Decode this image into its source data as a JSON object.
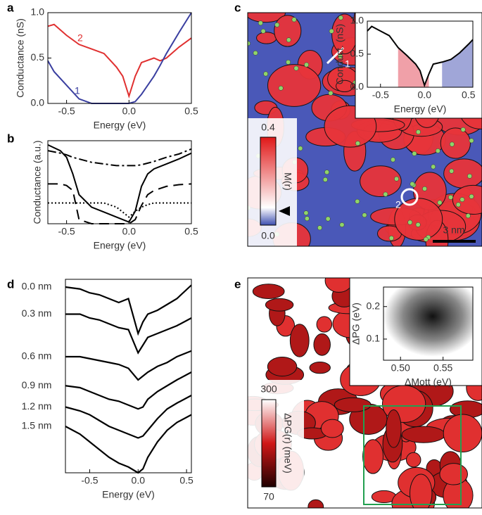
{
  "figure": {
    "panels": [
      "a",
      "b",
      "c",
      "d",
      "e"
    ],
    "c_scale_bar": "3 nm",
    "c_colorbar": {
      "max": "0.4",
      "min": "0.0",
      "label": "M(r)"
    },
    "c_sites": [
      "1",
      "2"
    ],
    "e_colorbar": {
      "max": "300",
      "min": "70",
      "label": "ΔPG(r) (meV)"
    }
  },
  "chart_data": [
    {
      "type": "line",
      "x_label": "Energy (eV)",
      "y_label": "Conductance (nS)",
      "x": [
        -0.65,
        -0.6,
        -0.5,
        -0.4,
        -0.3,
        -0.2,
        -0.1,
        -0.05,
        0,
        0.05,
        0.1,
        0.2,
        0.25,
        0.3,
        0.4,
        0.5
      ],
      "series": [
        {
          "name": "2",
          "color": "#e03030",
          "values": [
            0.85,
            0.87,
            0.75,
            0.65,
            0.6,
            0.55,
            0.4,
            0.3,
            0.08,
            0.3,
            0.45,
            0.5,
            0.47,
            0.5,
            0.62,
            0.72
          ]
        },
        {
          "name": "1",
          "color": "#3a3fa0",
          "values": [
            0.47,
            0.35,
            0.2,
            0.05,
            0.0,
            0.0,
            0.0,
            0.0,
            0.0,
            0.02,
            0.1,
            0.3,
            0.42,
            0.55,
            0.78,
            1.0
          ]
        }
      ],
      "xlim": [
        -0.65,
        0.5
      ],
      "ylim": [
        0,
        1
      ],
      "xticks": [
        -0.5,
        {
          "value": 0,
          "label": "0.0"
        },
        0.5
      ],
      "yticks": [
        {
          "value": 0,
          "label": "0.0"
        },
        0.5,
        {
          "value": 1,
          "label": "1.0"
        }
      ]
    },
    {
      "type": "line",
      "x_label": "Energy (eV)",
      "y_label": "Conductance (a.u.)",
      "x": [
        -0.65,
        -0.55,
        -0.5,
        -0.45,
        -0.4,
        -0.3,
        -0.2,
        -0.1,
        0,
        0.05,
        0.1,
        0.15,
        0.2,
        0.3,
        0.4,
        0.5
      ],
      "series": [
        {
          "color": "#000000",
          "dash": "solid",
          "values": [
            0.95,
            0.88,
            0.8,
            0.6,
            0.35,
            0.2,
            0.14,
            0.08,
            0.02,
            0.15,
            0.45,
            0.6,
            0.66,
            0.72,
            0.78,
            0.85
          ]
        },
        {
          "color": "#000000",
          "dash": "dashdot",
          "values": [
            0.88,
            0.85,
            0.83,
            0.8,
            0.78,
            0.74,
            0.72,
            0.7,
            0.7,
            0.7,
            0.71,
            0.73,
            0.75,
            0.8,
            0.84,
            0.9
          ]
        },
        {
          "color": "#000000",
          "dash": "dashed",
          "values": [
            0.48,
            0.48,
            0.46,
            0.4,
            0.05,
            0.0,
            0.0,
            0.0,
            0.0,
            0.05,
            0.22,
            0.35,
            0.4,
            0.45,
            0.47,
            0.48
          ]
        },
        {
          "color": "#000000",
          "dash": "dotted",
          "values": [
            0.25,
            0.25,
            0.25,
            0.25,
            0.25,
            0.25,
            0.25,
            0.2,
            0.08,
            0.15,
            0.2,
            0.23,
            0.25,
            0.25,
            0.25,
            0.25
          ]
        }
      ],
      "xlim": [
        -0.65,
        0.5
      ],
      "ylim": [
        0,
        1
      ],
      "xticks": [
        -0.5,
        {
          "value": 0,
          "label": "0.0"
        },
        0.5
      ],
      "yticks": []
    },
    {
      "type": "line",
      "x_label": "Energy (eV)",
      "y_label": "Conduct. (nS)",
      "x": [
        -0.65,
        -0.6,
        -0.5,
        -0.4,
        -0.3,
        -0.2,
        -0.1,
        -0.05,
        0,
        0.05,
        0.1,
        0.2,
        0.3,
        0.4,
        0.5,
        0.55
      ],
      "series": [
        {
          "color": "#000000",
          "values": [
            0.85,
            0.92,
            0.85,
            0.78,
            0.6,
            0.48,
            0.35,
            0.25,
            0.03,
            0.2,
            0.35,
            0.38,
            0.42,
            0.52,
            0.65,
            0.72
          ]
        }
      ],
      "shaded_regions": [
        {
          "from": -0.3,
          "to": 0.05,
          "color": "#f0a0a8"
        },
        {
          "from": 0.2,
          "to": 0.55,
          "color": "#a0a6d8"
        }
      ],
      "xlim": [
        -0.65,
        0.55
      ],
      "ylim": [
        0,
        1
      ],
      "xticks": [
        -0.5,
        {
          "value": 0,
          "label": "0.0"
        },
        0.5
      ],
      "yticks": [
        {
          "value": 0,
          "label": "0.0"
        },
        0.5,
        {
          "value": 1,
          "label": "1.0"
        }
      ]
    },
    {
      "type": "line",
      "x_label": "Energy (eV)",
      "x": [
        -0.75,
        -0.6,
        -0.5,
        -0.4,
        -0.3,
        -0.2,
        -0.1,
        0,
        0.05,
        0.1,
        0.2,
        0.3,
        0.4,
        0.55
      ],
      "series": [
        {
          "name": "0.0 nm",
          "color": "#000000",
          "values": [
            0.96,
            0.95,
            0.93,
            0.92,
            0.9,
            0.88,
            0.9,
            0.72,
            0.78,
            0.82,
            0.84,
            0.87,
            0.9,
            0.97
          ]
        },
        {
          "name": "0.3 nm",
          "color": "#000000",
          "values": [
            0.82,
            0.82,
            0.8,
            0.79,
            0.77,
            0.75,
            0.74,
            0.62,
            0.66,
            0.7,
            0.72,
            0.74,
            0.76,
            0.8
          ]
        },
        {
          "name": "0.6 nm",
          "color": "#000000",
          "values": [
            0.6,
            0.6,
            0.59,
            0.58,
            0.57,
            0.56,
            0.54,
            0.48,
            0.5,
            0.52,
            0.55,
            0.57,
            0.6,
            0.63
          ]
        },
        {
          "name": "0.9 nm",
          "color": "#000000",
          "values": [
            0.45,
            0.44,
            0.42,
            0.4,
            0.38,
            0.37,
            0.35,
            0.33,
            0.34,
            0.38,
            0.42,
            0.45,
            0.48,
            0.52
          ]
        },
        {
          "name": "1.2 nm",
          "color": "#000000",
          "values": [
            0.34,
            0.32,
            0.3,
            0.27,
            0.24,
            0.22,
            0.2,
            0.18,
            0.19,
            0.22,
            0.28,
            0.33,
            0.36,
            0.4
          ]
        },
        {
          "name": "1.5 nm",
          "color": "#000000",
          "values": [
            0.24,
            0.2,
            0.16,
            0.12,
            0.08,
            0.05,
            0.03,
            0.0,
            0.02,
            0.08,
            0.16,
            0.22,
            0.26,
            0.3
          ]
        }
      ],
      "xlim": [
        -0.75,
        0.55
      ],
      "ylim": [
        0,
        1
      ],
      "xticks": [
        -0.5,
        {
          "value": 0,
          "label": "0.0"
        },
        0.5
      ],
      "yticks": []
    },
    {
      "type": "histogram2d",
      "x_label": "ΔMott (eV)",
      "y_label": "ΔPG (eV)",
      "xlim": [
        0.48,
        0.585
      ],
      "ylim": [
        0.035,
        0.26
      ],
      "xticks": [
        {
          "value": 0.5,
          "label": "0.50"
        },
        0.55
      ],
      "yticks": [
        0.1,
        0.2
      ]
    }
  ]
}
